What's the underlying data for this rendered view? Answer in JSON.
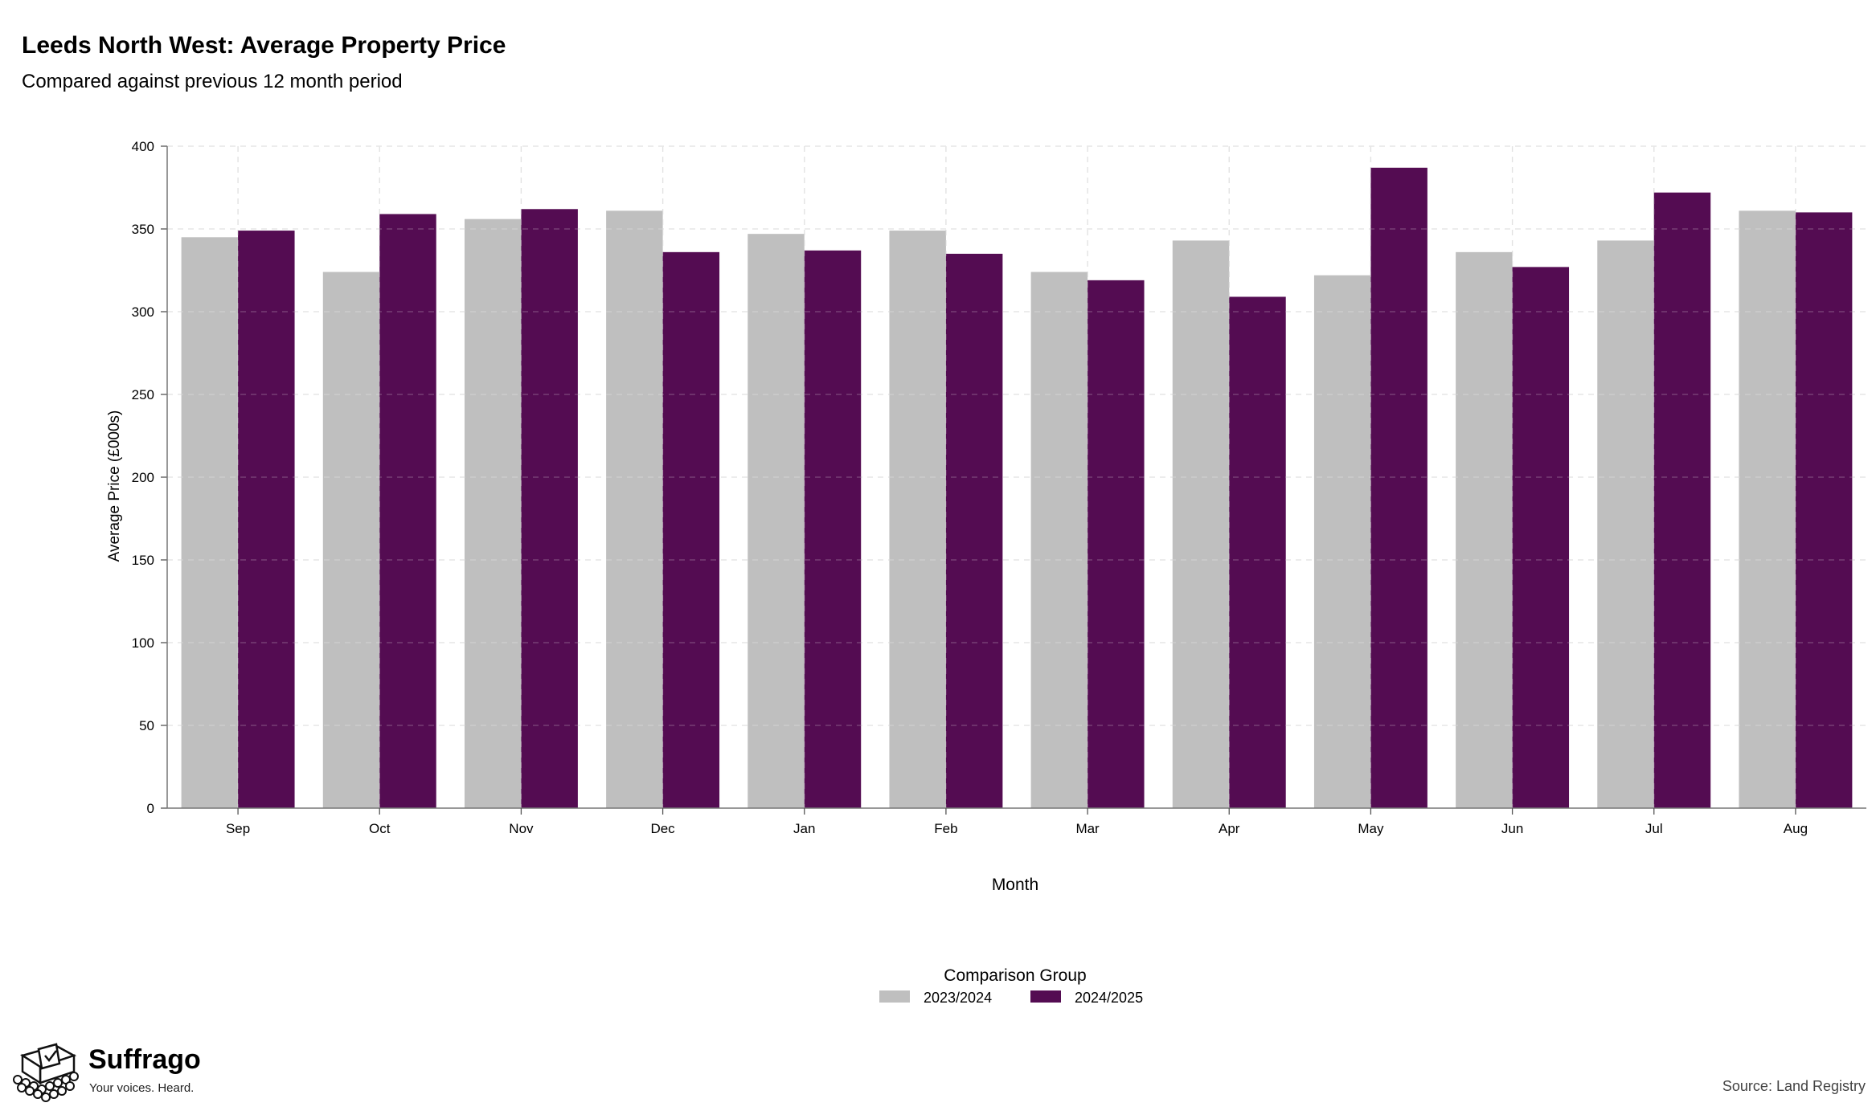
{
  "chart_data": {
    "type": "bar",
    "title": "Leeds North West: Average Property Price",
    "subtitle": "Compared against previous 12 month period",
    "xlabel": "Month",
    "ylabel": "Average Price (£000s)",
    "categories": [
      "Sep",
      "Oct",
      "Nov",
      "Dec",
      "Jan",
      "Feb",
      "Mar",
      "Apr",
      "May",
      "Jun",
      "Jul",
      "Aug"
    ],
    "series": [
      {
        "name": "2023/2024",
        "color": "#bfbfbf",
        "values": [
          345,
          324,
          356,
          361,
          347,
          349,
          324,
          343,
          322,
          336,
          343,
          361
        ]
      },
      {
        "name": "2024/2025",
        "color": "#540c52",
        "values": [
          349,
          359,
          362,
          336,
          337,
          335,
          319,
          309,
          387,
          327,
          372,
          360
        ]
      }
    ],
    "ylim": [
      0,
      400
    ],
    "yticks": [
      0,
      50,
      100,
      150,
      200,
      250,
      300,
      350,
      400
    ],
    "grid": true,
    "legend_title": "Comparison Group",
    "legend_position": "bottom-center"
  },
  "branding": {
    "name": "Suffrago",
    "tagline": "Your voices. Heard.",
    "icon": "ballot-box-icon"
  },
  "source": "Source: Land Registry"
}
